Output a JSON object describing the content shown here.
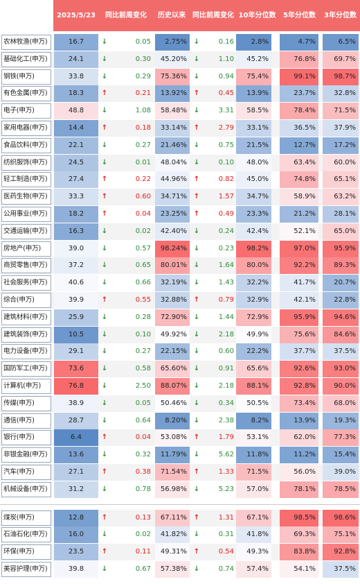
{
  "header": {
    "date": "2025/5/23",
    "col_chg1": "同比前周变化",
    "col_hist": "历史以来",
    "col_chg2": "同比前周变化",
    "col_p10": "10年分位数",
    "col_p5": "5年分位数",
    "col_p3": "3年分位数"
  },
  "colors": {
    "header_bg": "#f26b6b",
    "up_arrow": "#e32020",
    "down_arrow": "#2e8b3a",
    "high_heat": "#f8696b",
    "low_heat": "#5a8ac6",
    "neutral": "#fcfcff"
  },
  "rows": [
    {
      "name": "农林牧渔(申万)",
      "pe": "16.7",
      "arr1": "↓",
      "chg1": "0.05",
      "hist": "2.75%",
      "arr2": "↓",
      "chg2": "0.16",
      "p10": "2.8%",
      "p5": "4.7%",
      "p3": "6.5%"
    },
    {
      "name": "基础化工(申万)",
      "pe": "24.1",
      "arr1": "↓",
      "chg1": "0.30",
      "hist": "45.20%",
      "arr2": "↓",
      "chg2": "1.10",
      "p10": "45.2%",
      "p5": "76.8%",
      "p3": "69.7%"
    },
    {
      "name": "钢铁(申万)",
      "pe": "33.8",
      "arr1": "↓",
      "chg1": "0.29",
      "hist": "75.36%",
      "arr2": "↓",
      "chg2": "0.94",
      "p10": "75.4%",
      "p5": "99.1%",
      "p3": "98.7%"
    },
    {
      "name": "有色金属(申万)",
      "pe": "18.3",
      "arr1": "↑",
      "chg1": "0.21",
      "hist": "13.92%",
      "arr2": "↑",
      "chg2": "0.45",
      "p10": "13.9%",
      "p5": "23.7%",
      "p3": "32.8%"
    },
    {
      "name": "电子(申万)",
      "pe": "48.8",
      "arr1": "↓",
      "chg1": "1.08",
      "hist": "58.48%",
      "arr2": "↓",
      "chg2": "3.31",
      "p10": "58.5%",
      "p5": "78.4%",
      "p3": "71.5%"
    },
    {
      "name": "家用电器(申万)",
      "pe": "14.4",
      "arr1": "↑",
      "chg1": "0.18",
      "hist": "33.14%",
      "arr2": "↑",
      "chg2": "2.79",
      "p10": "33.1%",
      "p5": "36.5%",
      "p3": "37.9%"
    },
    {
      "name": "食品饮料(申万)",
      "pe": "22.1",
      "arr1": "↓",
      "chg1": "0.27",
      "hist": "21.46%",
      "arr2": "↓",
      "chg2": "0.75",
      "p10": "21.5%",
      "p5": "12.7%",
      "p3": "17.2%"
    },
    {
      "name": "纺织服饰(申万)",
      "pe": "24.5",
      "arr1": "↓",
      "chg1": "0.01",
      "hist": "48.04%",
      "arr2": "↓",
      "chg2": "0.10",
      "p10": "48.0%",
      "p5": "63.4%",
      "p3": "60.0%"
    },
    {
      "name": "轻工制造(申万)",
      "pe": "27.4",
      "arr1": "↑",
      "chg1": "0.22",
      "hist": "44.96%",
      "arr2": "↑",
      "chg2": "0.82",
      "p10": "45.0%",
      "p5": "74.8%",
      "p3": "65.1%"
    },
    {
      "name": "医药生物(申万)",
      "pe": "33.3",
      "arr1": "↑",
      "chg1": "0.60",
      "hist": "34.71%",
      "arr2": "↑",
      "chg2": "1.57",
      "p10": "34.7%",
      "p5": "58.9%",
      "p3": "63.2%"
    },
    {
      "name": "公用事业(申万)",
      "pe": "18.2",
      "arr1": "↑",
      "chg1": "0.04",
      "hist": "23.25%",
      "arr2": "↑",
      "chg2": "0.49",
      "p10": "23.3%",
      "p5": "21.2%",
      "p3": "28.1%"
    },
    {
      "name": "交通运输(申万)",
      "pe": "16.3",
      "arr1": "↓",
      "chg1": "0.02",
      "hist": "42.40%",
      "arr2": "↓",
      "chg2": "0.24",
      "p10": "42.4%",
      "p5": "52.1%",
      "p3": "65.0%"
    },
    {
      "name": "房地产(申万)",
      "pe": "39.0",
      "arr1": "↓",
      "chg1": "0.57",
      "hist": "98.24%",
      "arr2": "↓",
      "chg2": "0.23",
      "p10": "98.2%",
      "p5": "97.0%",
      "p3": "95.9%"
    },
    {
      "name": "商贸零售(申万)",
      "pe": "37.2",
      "arr1": "↓",
      "chg1": "0.65",
      "hist": "80.01%",
      "arr2": "↓",
      "chg2": "1.64",
      "p10": "80.0%",
      "p5": "92.2%",
      "p3": "89.3%"
    },
    {
      "name": "社会服务(申万)",
      "pe": "40.6",
      "arr1": "↓",
      "chg1": "0.66",
      "hist": "32.19%",
      "arr2": "↓",
      "chg2": "1.43",
      "p10": "32.2%",
      "p5": "41.7%",
      "p3": "20.7%"
    },
    {
      "name": "综合(申万)",
      "pe": "39.9",
      "arr1": "↑",
      "chg1": "0.55",
      "hist": "32.88%",
      "arr2": "↑",
      "chg2": "0.79",
      "p10": "32.9%",
      "p5": "42.1%",
      "p3": "22.8%"
    },
    {
      "name": "建筑材料(申万)",
      "pe": "25.9",
      "arr1": "↓",
      "chg1": "0.28",
      "hist": "72.90%",
      "arr2": "↓",
      "chg2": "1.44",
      "p10": "72.9%",
      "p5": "95.9%",
      "p3": "94.6%"
    },
    {
      "name": "建筑装饰(申万)",
      "pe": "10.5",
      "arr1": "↓",
      "chg1": "0.10",
      "hist": "49.92%",
      "arr2": "↓",
      "chg2": "2.18",
      "p10": "49.9%",
      "p5": "75.6%",
      "p3": "84.6%"
    },
    {
      "name": "电力设备(申万)",
      "pe": "29.1",
      "arr1": "↓",
      "chg1": "0.27",
      "hist": "22.15%",
      "arr2": "↓",
      "chg2": "0.60",
      "p10": "22.2%",
      "p5": "37.7%",
      "p3": "37.5%"
    },
    {
      "name": "国防军工(申万)",
      "pe": "73.6",
      "arr1": "↓",
      "chg1": "0.58",
      "hist": "65.60%",
      "arr2": "↓",
      "chg2": "0.91",
      "p10": "65.6%",
      "p5": "92.6%",
      "p3": "93.0%"
    },
    {
      "name": "计算机(申万)",
      "pe": "76.8",
      "arr1": "↓",
      "chg1": "2.50",
      "hist": "88.07%",
      "arr2": "↓",
      "chg2": "2.18",
      "p10": "88.1%",
      "p5": "92.8%",
      "p3": "90.0%"
    },
    {
      "name": "传媒(申万)",
      "pe": "38.9",
      "arr1": "↓",
      "chg1": "0.05",
      "hist": "50.46%",
      "arr2": "↓",
      "chg2": "0.34",
      "p10": "50.5%",
      "p5": "73.4%",
      "p3": "68.0%"
    },
    {
      "name": "通信(申万)",
      "pe": "28.7",
      "arr1": "↓",
      "chg1": "0.64",
      "hist": "8.20%",
      "arr2": "↓",
      "chg2": "2.38",
      "p10": "8.2%",
      "p5": "13.9%",
      "p3": "19.3%"
    },
    {
      "name": "银行(申万)",
      "pe": "6.4",
      "arr1": "↑",
      "chg1": "0.04",
      "hist": "53.08%",
      "arr2": "↑",
      "chg2": "1.79",
      "p10": "53.1%",
      "p5": "62.0%",
      "p3": "77.3%"
    },
    {
      "name": "非银金融(申万)",
      "pe": "13.6",
      "arr1": "↓",
      "chg1": "0.32",
      "hist": "11.79%",
      "arr2": "↓",
      "chg2": "5.62",
      "p10": "11.8%",
      "p5": "11.2%",
      "p3": "15.4%"
    },
    {
      "name": "汽车(申万)",
      "pe": "27.1",
      "arr1": "↑",
      "chg1": "0.38",
      "hist": "71.54%",
      "arr2": "↑",
      "chg2": "1.33",
      "p10": "71.5%",
      "p5": "56.0%",
      "p3": "39.0%"
    },
    {
      "name": "机械设备(申万)",
      "pe": "31.2",
      "arr1": "↓",
      "chg1": "0.78",
      "hist": "56.98%",
      "arr2": "↓",
      "chg2": "5.23",
      "p10": "57.0%",
      "p5": "78.1%",
      "p3": "78.5%"
    },
    {
      "name": "煤炭(申万)",
      "pe": "12.8",
      "arr1": "↑",
      "chg1": "0.13",
      "hist": "67.11%",
      "arr2": "↑",
      "chg2": "1.31",
      "p10": "67.1%",
      "p5": "98.5%",
      "p3": "98.6%"
    },
    {
      "name": "石油石化(申万)",
      "pe": "16.0",
      "arr1": "↓",
      "chg1": "0.02",
      "hist": "41.82%",
      "arr2": "↓",
      "chg2": "0.31",
      "p10": "41.8%",
      "p5": "69.3%",
      "p3": "75.1%"
    },
    {
      "name": "环保(申万)",
      "pe": "23.5",
      "arr1": "↑",
      "chg1": "0.11",
      "hist": "49.31%",
      "arr2": "↑",
      "chg2": "0.54",
      "p10": "49.3%",
      "p5": "83.8%",
      "p3": "92.8%"
    },
    {
      "name": "美容护理(申万)",
      "pe": "39.8",
      "arr1": "↓",
      "chg1": "0.67",
      "hist": "57.38%",
      "arr2": "↓",
      "chg2": "0.74",
      "p10": "57.4%",
      "p5": "54.1%",
      "p3": "37.5%"
    }
  ]
}
